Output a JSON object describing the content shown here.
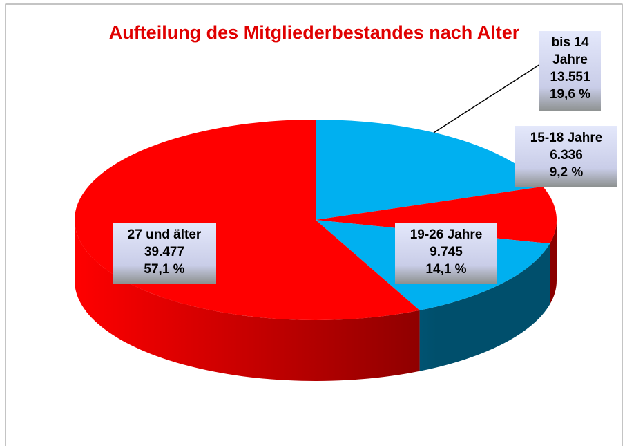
{
  "chart_data": {
    "type": "pie3d",
    "title": "Aufteilung des Mitgliederbestandes nach Alter",
    "categories": [
      "bis 14 Jahre",
      "15-18 Jahre",
      "19-26 Jahre",
      "27 und älter"
    ],
    "values": [
      19.6,
      9.2,
      14.1,
      57.1
    ],
    "value_labels": [
      "19,6 %",
      "9,2 %",
      "14,1 %",
      "57,1 %"
    ],
    "counts": [
      13551,
      6336,
      9745,
      39477
    ],
    "count_labels": [
      "13.551",
      "6.336",
      "9.745",
      "39.477"
    ],
    "colors": [
      "#00b0f0",
      "#ff0000",
      "#00b0f0",
      "#ff0000"
    ],
    "side_colors": [
      "#004f6c",
      "#8a0000",
      "#004f6c",
      "#8a0000"
    ]
  }
}
